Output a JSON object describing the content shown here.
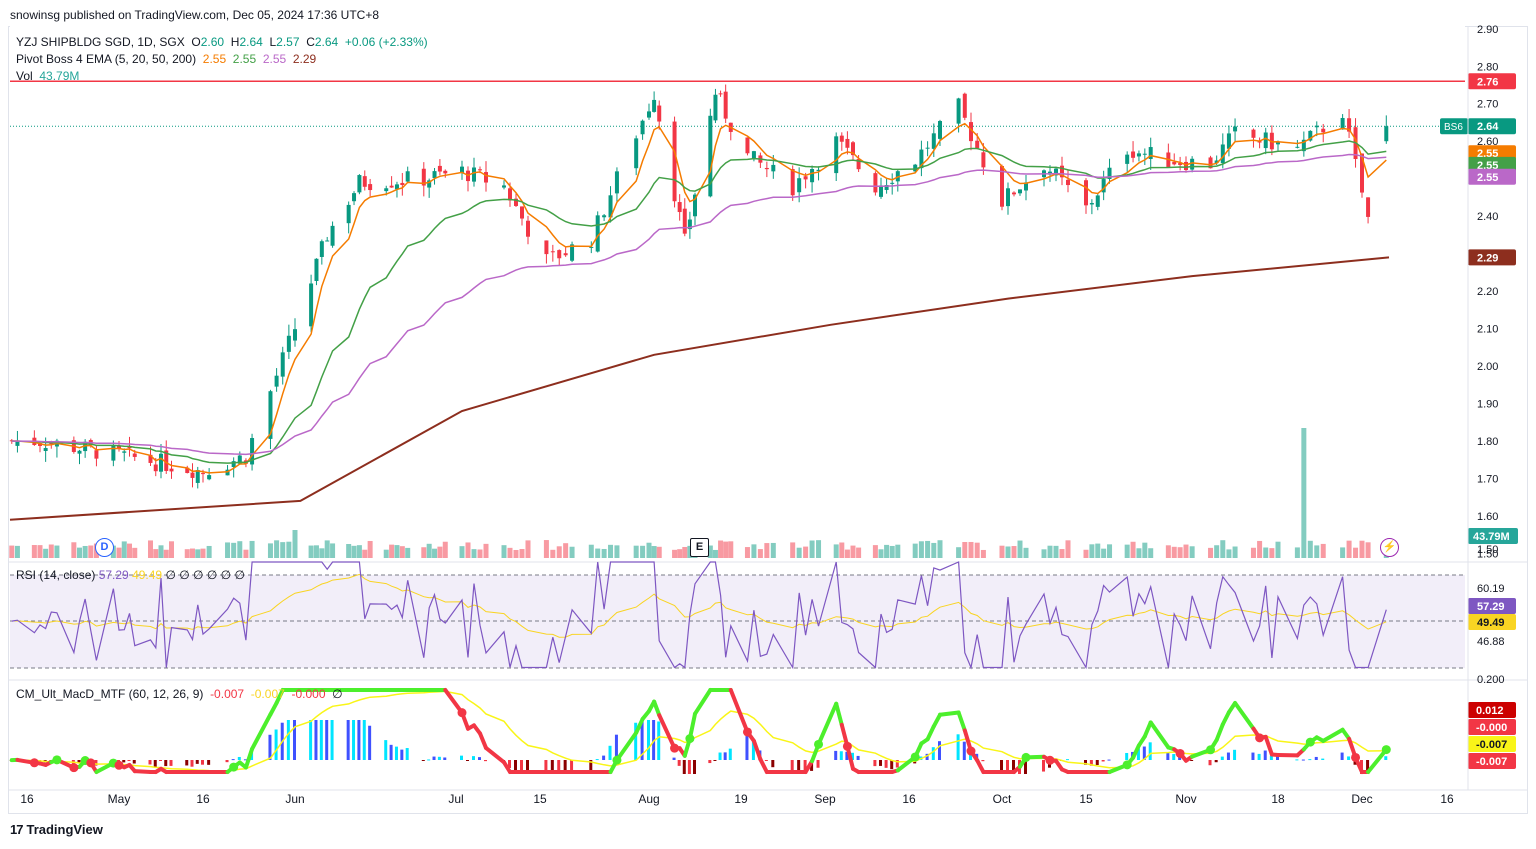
{
  "header": {
    "publisher": "snowinsg published on TradingView.com, Dec 05, 2024 17:36 UTC+8"
  },
  "legend": {
    "symbol": "YZJ SHIPBLDG SGD, 1D, SGX",
    "ohlc": {
      "O": "2.60",
      "H": "2.64",
      "L": "2.57",
      "C": "2.64",
      "chg": "+0.06 (+2.33%)"
    },
    "ema_title": "Pivot Boss 4 EMA (5, 20, 50, 200)",
    "ema_values": [
      "2.55",
      "2.55",
      "2.55",
      "2.29"
    ],
    "vol_title": "Vol",
    "vol_value": "43.79M",
    "rsi_title": "RSI (14, close)",
    "rsi_values": [
      "57.29",
      "49.49",
      "∅",
      "∅",
      "∅",
      "∅",
      "∅",
      "∅"
    ],
    "macd_title": "CM_Ult_MacD_MTF (60, 12, 26, 9)",
    "macd_values": [
      "-0.007",
      "-0.007",
      "-0.000",
      "∅"
    ]
  },
  "footer": {
    "brand": "TradingView",
    "logo": "17"
  },
  "markers": {
    "dividend": "D",
    "earnings": "E"
  },
  "price_axis": {
    "ticks": [
      "2.90",
      "2.80",
      "2.70",
      "2.60",
      "2.50",
      "2.40",
      "2.30",
      "2.20",
      "2.10",
      "2.00",
      "1.90",
      "1.80",
      "1.70",
      "1.60",
      "1.50"
    ],
    "vol_label": "43.79M",
    "labels": [
      {
        "text": "2.76",
        "value": 2.76,
        "color": "#f23645"
      },
      {
        "text": "2.64",
        "value": 2.64,
        "color": "#089981",
        "tag": "BS6"
      },
      {
        "text": "2.55",
        "value": 2.568,
        "color": "#f57c00"
      },
      {
        "text": "2.55",
        "value": 2.537,
        "color": "#43a047"
      },
      {
        "text": "2.55",
        "value": 2.505,
        "color": "#ba68c8"
      },
      {
        "text": "2.29",
        "value": 2.29,
        "color": "#8d2e1e"
      }
    ]
  },
  "rsi_axis": {
    "ticks": [
      "60.19",
      "46.88"
    ],
    "labels": [
      {
        "text": "57.29",
        "value": 57.29,
        "color": "#7e57c2"
      },
      {
        "text": "49.49",
        "value": 49.49,
        "color": "#f9d423"
      }
    ]
  },
  "macd_axis": {
    "ticks": [
      "0.200"
    ],
    "labels": [
      {
        "text": "0.012",
        "color": "#cc0000"
      },
      {
        "text": "-0.000",
        "color": "#f23645"
      },
      {
        "text": "-0.007",
        "color": "#f9f518"
      },
      {
        "text": "-0.007",
        "color": "#f23645"
      }
    ]
  },
  "time_axis": [
    "16",
    "May",
    "16",
    "Jun",
    "Jul",
    "15",
    "Aug",
    "19",
    "Sep",
    "16",
    "Oct",
    "15",
    "Nov",
    "18",
    "Dec",
    "16"
  ],
  "colors": {
    "up": "#089981",
    "down": "#f23645",
    "ema5": "#f57c00",
    "ema20": "#43a047",
    "ema50": "#ba68c8",
    "ema200": "#8d2e1e",
    "resistance": "#f23645",
    "rsi": "#7e57c2",
    "rsi_ma": "#f9d423"
  },
  "chart_data": {
    "type": "candlestick",
    "title": "YZJ SHIPBLDG SGD, 1D, SGX",
    "x_labels": [
      "16",
      "May",
      "16",
      "Jun",
      "Jul",
      "15",
      "Aug",
      "19",
      "Sep",
      "16",
      "Oct",
      "15",
      "Nov",
      "18",
      "Dec",
      "16"
    ],
    "ylim": [
      1.49,
      2.92
    ],
    "resistance": 2.76,
    "last": {
      "open": 2.6,
      "high": 2.64,
      "low": 2.57,
      "close": 2.64,
      "change": 0.06,
      "change_pct": 2.33
    },
    "close_series": [
      {
        "label": "Apr 16",
        "close": 1.8
      },
      {
        "label": "May 1",
        "close": 1.76
      },
      {
        "label": "May 16",
        "close": 1.72
      },
      {
        "label": "May 23",
        "close": 1.76
      },
      {
        "label": "May 30",
        "close": 2.06
      },
      {
        "label": "Jun 6",
        "close": 2.35
      },
      {
        "label": "Jun 12",
        "close": 2.49
      },
      {
        "label": "Jun 24",
        "close": 2.5
      },
      {
        "label": "Jul 1",
        "close": 2.52
      },
      {
        "label": "Jul 8",
        "close": 2.48
      },
      {
        "label": "Jul 15",
        "close": 2.28
      },
      {
        "label": "Jul 22",
        "close": 2.34
      },
      {
        "label": "Jul 29",
        "close": 2.62
      },
      {
        "label": "Aug 1",
        "close": 2.73
      },
      {
        "label": "Aug 7",
        "close": 2.33
      },
      {
        "label": "Aug 13",
        "close": 2.73
      },
      {
        "label": "Aug 19",
        "close": 2.56
      },
      {
        "label": "Aug 26",
        "close": 2.48
      },
      {
        "label": "Sep 2",
        "close": 2.6
      },
      {
        "label": "Sep 9",
        "close": 2.48
      },
      {
        "label": "Sep 16",
        "close": 2.55
      },
      {
        "label": "Sep 23",
        "close": 2.69
      },
      {
        "label": "Sep 30",
        "close": 2.44
      },
      {
        "label": "Oct 7",
        "close": 2.54
      },
      {
        "label": "Oct 14",
        "close": 2.42
      },
      {
        "label": "Oct 21",
        "close": 2.58
      },
      {
        "label": "Oct 28",
        "close": 2.55
      },
      {
        "label": "Nov 4",
        "close": 2.54
      },
      {
        "label": "Nov 8",
        "close": 2.62
      },
      {
        "label": "Nov 18",
        "close": 2.58
      },
      {
        "label": "Nov 25",
        "close": 2.68
      },
      {
        "label": "Nov 29",
        "close": 2.39
      },
      {
        "label": "Dec 2",
        "close": 2.55
      },
      {
        "label": "Dec 5",
        "close": 2.64
      }
    ],
    "ema": {
      "ema5": [
        {
          "label": "Dec 5",
          "value": 2.55
        }
      ],
      "ema20": [
        {
          "label": "Dec 5",
          "value": 2.55
        }
      ],
      "ema50": [
        {
          "label": "Dec 5",
          "value": 2.55
        }
      ],
      "ema200": [
        {
          "label": "Apr 16",
          "value": 1.59
        },
        {
          "label": "Jun 1",
          "value": 1.64
        },
        {
          "label": "Jul 1",
          "value": 1.88
        },
        {
          "label": "Aug 1",
          "value": 2.03
        },
        {
          "label": "Sep 1",
          "value": 2.11
        },
        {
          "label": "Oct 1",
          "value": 2.18
        },
        {
          "label": "Nov 1",
          "value": 2.24
        },
        {
          "label": "Dec 5",
          "value": 2.29
        }
      ]
    },
    "volume": {
      "last": "43.79M"
    },
    "rsi": {
      "last": 57.29,
      "ma": 49.49,
      "levels": [
        60.19,
        46.88
      ]
    },
    "macd": {
      "macd": -0.007,
      "signal": -0.007,
      "hist": -0.0
    }
  }
}
